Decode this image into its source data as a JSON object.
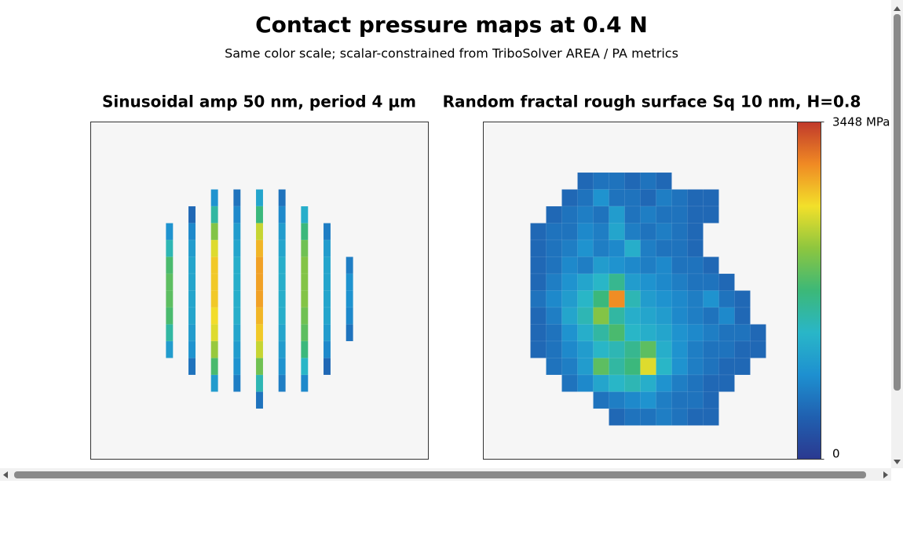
{
  "header": {
    "title": "Contact pressure maps at 0.4 N",
    "subtitle": "Same color scale; scalar-constrained from TriboSolver AREA / PA metrics"
  },
  "chart_data": [
    {
      "type": "heatmap",
      "title": "Sinusoidal amp 50 nm, period 4 µm",
      "zlim": [
        0,
        3448
      ],
      "colormap": [
        "#2b3990",
        "#2060b0",
        "#1e90d0",
        "#29b6c8",
        "#3cb878",
        "#8dc63f",
        "#f2e02a",
        "#f08a24",
        "#c0392b"
      ],
      "z": [
        [
          null,
          null,
          null,
          null,
          null,
          null,
          null,
          null,
          null,
          null,
          null,
          null,
          null,
          null,
          null
        ],
        [
          null,
          null,
          null,
          null,
          null,
          null,
          null,
          null,
          null,
          null,
          null,
          null,
          null,
          null,
          null
        ],
        [
          null,
          null,
          null,
          null,
          null,
          null,
          null,
          null,
          null,
          null,
          null,
          null,
          null,
          null,
          null
        ],
        [
          null,
          null,
          null,
          null,
          null,
          null,
          null,
          null,
          null,
          null,
          null,
          null,
          null,
          null,
          null
        ],
        [
          null,
          null,
          null,
          null,
          null,
          900,
          600,
          1100,
          600,
          null,
          null,
          null,
          null,
          null,
          null
        ],
        [
          null,
          null,
          null,
          null,
          500,
          1500,
          800,
          1700,
          800,
          1200,
          null,
          null,
          null,
          null,
          null
        ],
        [
          null,
          null,
          null,
          900,
          800,
          2100,
          1000,
          2400,
          1000,
          1700,
          700,
          null,
          null,
          null,
          null
        ],
        [
          null,
          null,
          null,
          1400,
          1000,
          2500,
          1100,
          2800,
          1100,
          2000,
          1000,
          null,
          null,
          null,
          null
        ],
        [
          null,
          null,
          null,
          1800,
          1100,
          2700,
          1200,
          2900,
          1200,
          2100,
          1100,
          700,
          null,
          null,
          null
        ],
        [
          null,
          null,
          null,
          1900,
          1100,
          2700,
          1200,
          2900,
          1200,
          2100,
          1100,
          900,
          null,
          null,
          null
        ],
        [
          null,
          null,
          null,
          1900,
          1100,
          2700,
          1200,
          2900,
          1200,
          2100,
          1100,
          900,
          null,
          null,
          null
        ],
        [
          null,
          null,
          null,
          1800,
          1100,
          2600,
          1200,
          2800,
          1200,
          2000,
          1100,
          800,
          null,
          null,
          null
        ],
        [
          null,
          null,
          null,
          1500,
          1000,
          2500,
          1100,
          2700,
          1100,
          1900,
          1000,
          600,
          null,
          null,
          null
        ],
        [
          null,
          null,
          null,
          1000,
          900,
          2200,
          1000,
          2400,
          1000,
          1700,
          800,
          null,
          null,
          null,
          null
        ],
        [
          null,
          null,
          null,
          null,
          600,
          1800,
          900,
          2000,
          900,
          1300,
          500,
          null,
          null,
          null,
          null
        ],
        [
          null,
          null,
          null,
          null,
          null,
          1000,
          700,
          1400,
          700,
          800,
          null,
          null,
          null,
          null,
          null
        ],
        [
          null,
          null,
          null,
          null,
          null,
          null,
          null,
          600,
          null,
          null,
          null,
          null,
          null,
          null,
          null
        ],
        [
          null,
          null,
          null,
          null,
          null,
          null,
          null,
          null,
          null,
          null,
          null,
          null,
          null,
          null,
          null
        ],
        [
          null,
          null,
          null,
          null,
          null,
          null,
          null,
          null,
          null,
          null,
          null,
          null,
          null,
          null,
          null
        ],
        [
          null,
          null,
          null,
          null,
          null,
          null,
          null,
          null,
          null,
          null,
          null,
          null,
          null,
          null,
          null
        ]
      ]
    },
    {
      "type": "heatmap",
      "title": "Random fractal rough surface Sq 10 nm, H=0.8",
      "zlim": [
        0,
        3448
      ],
      "colormap": [
        "#2b3990",
        "#2060b0",
        "#1e90d0",
        "#29b6c8",
        "#3cb878",
        "#8dc63f",
        "#f2e02a",
        "#f08a24",
        "#c0392b"
      ],
      "colorbar_ticks": [
        {
          "value": 3448,
          "label": "3448 MPa"
        },
        0
      ],
      "z": [
        [
          null,
          null,
          null,
          null,
          null,
          null,
          null,
          null,
          null,
          null,
          null,
          null,
          null,
          null,
          null,
          null,
          null,
          null,
          null,
          null
        ],
        [
          null,
          null,
          null,
          null,
          null,
          null,
          null,
          null,
          null,
          null,
          null,
          null,
          null,
          null,
          null,
          null,
          null,
          null,
          null,
          null
        ],
        [
          null,
          null,
          null,
          null,
          null,
          null,
          null,
          null,
          null,
          null,
          null,
          null,
          null,
          null,
          null,
          null,
          null,
          null,
          null,
          null
        ],
        [
          null,
          null,
          null,
          null,
          null,
          null,
          500,
          600,
          600,
          500,
          600,
          500,
          null,
          null,
          null,
          null,
          null,
          null,
          null,
          null
        ],
        [
          null,
          null,
          null,
          null,
          null,
          500,
          600,
          900,
          600,
          600,
          500,
          700,
          600,
          500,
          500,
          null,
          null,
          null,
          null,
          null
        ],
        [
          null,
          null,
          null,
          null,
          500,
          600,
          700,
          600,
          1000,
          600,
          700,
          600,
          600,
          500,
          500,
          null,
          null,
          null,
          null,
          null
        ],
        [
          null,
          null,
          null,
          500,
          600,
          600,
          800,
          700,
          1100,
          700,
          600,
          700,
          600,
          500,
          null,
          null,
          null,
          null,
          null,
          null
        ],
        [
          null,
          null,
          null,
          500,
          600,
          700,
          900,
          700,
          800,
          1200,
          700,
          600,
          600,
          500,
          null,
          null,
          null,
          null,
          null,
          null
        ],
        [
          null,
          null,
          null,
          500,
          600,
          800,
          700,
          1000,
          900,
          800,
          700,
          800,
          600,
          600,
          500,
          null,
          null,
          null,
          null,
          null
        ],
        [
          null,
          null,
          null,
          500,
          700,
          900,
          1100,
          1300,
          1600,
          1000,
          900,
          800,
          700,
          600,
          600,
          500,
          null,
          null,
          null,
          null
        ],
        [
          null,
          null,
          null,
          600,
          800,
          1000,
          1300,
          1700,
          3000,
          1400,
          1000,
          900,
          800,
          700,
          900,
          600,
          500,
          null,
          null,
          null
        ],
        [
          null,
          null,
          null,
          500,
          700,
          1100,
          1400,
          2100,
          1500,
          1200,
          1100,
          1000,
          800,
          700,
          600,
          800,
          500,
          null,
          null,
          null
        ],
        [
          null,
          null,
          null,
          500,
          600,
          900,
          1200,
          1500,
          1800,
          1300,
          1200,
          1100,
          900,
          800,
          700,
          600,
          600,
          500,
          null,
          null
        ],
        [
          null,
          null,
          null,
          500,
          600,
          800,
          1000,
          1300,
          1400,
          1600,
          1900,
          1200,
          900,
          700,
          600,
          600,
          500,
          500,
          null,
          null
        ],
        [
          null,
          null,
          null,
          null,
          600,
          700,
          1000,
          1900,
          1500,
          1700,
          2500,
          1300,
          900,
          700,
          600,
          500,
          500,
          null,
          null,
          null
        ],
        [
          null,
          null,
          null,
          null,
          null,
          600,
          800,
          1100,
          1300,
          1400,
          1200,
          900,
          700,
          600,
          500,
          500,
          null,
          null,
          null,
          null
        ],
        [
          null,
          null,
          null,
          null,
          null,
          null,
          null,
          600,
          700,
          800,
          900,
          700,
          600,
          600,
          500,
          null,
          null,
          null,
          null,
          null
        ],
        [
          null,
          null,
          null,
          null,
          null,
          null,
          null,
          null,
          500,
          600,
          600,
          700,
          600,
          500,
          500,
          null,
          null,
          null,
          null,
          null
        ],
        [
          null,
          null,
          null,
          null,
          null,
          null,
          null,
          null,
          null,
          null,
          null,
          null,
          null,
          null,
          null,
          null,
          null,
          null,
          null,
          null
        ],
        [
          null,
          null,
          null,
          null,
          null,
          null,
          null,
          null,
          null,
          null,
          null,
          null,
          null,
          null,
          null,
          null,
          null,
          null,
          null,
          null
        ]
      ]
    }
  ]
}
